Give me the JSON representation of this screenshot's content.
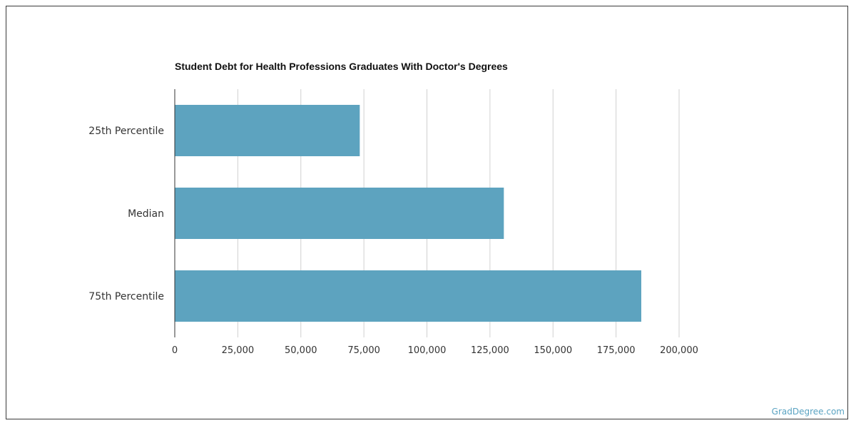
{
  "chart_data": {
    "type": "bar",
    "orientation": "horizontal",
    "title": "Student Debt for Health Professions Graduates With Doctor's Degrees",
    "categories": [
      "25th Percentile",
      "Median",
      "75th Percentile"
    ],
    "values": [
      73361,
      130500,
      185000
    ],
    "xlim": [
      0,
      200000
    ],
    "xticks": [
      0,
      25000,
      50000,
      75000,
      100000,
      125000,
      150000,
      175000,
      200000
    ],
    "xtick_labels": [
      "0",
      "25,000",
      "50,000",
      "75,000",
      "100,000",
      "125,000",
      "150,000",
      "175,000",
      "200,000"
    ],
    "grid": "vertical",
    "legend": "none",
    "bar_color": "#5da3bf"
  },
  "footer": {
    "source_label": "GradDegree.com"
  }
}
